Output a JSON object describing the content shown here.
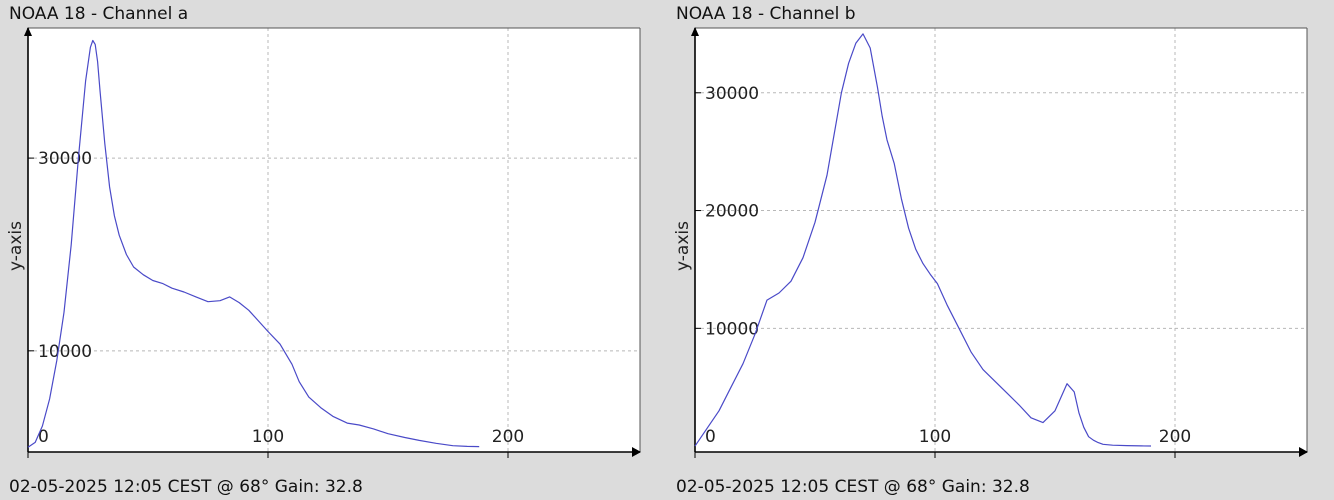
{
  "chart_data": [
    {
      "type": "line",
      "title": "NOAA 18 - Channel a",
      "footer": "02-05-2025 12:05 CEST @ 68° Gain: 32.8",
      "xlabel": "",
      "ylabel": "y-axis",
      "xlim": [
        0,
        255
      ],
      "ylim": [
        -500,
        43500
      ],
      "xticks": [
        0,
        100,
        200
      ],
      "yticks": [
        0,
        10000,
        30000
      ],
      "grid": true,
      "line_color": "#4a4ac8",
      "series": [
        {
          "x": [
            0,
            3,
            6,
            9,
            12,
            15,
            18,
            21,
            24,
            26,
            27,
            28,
            29,
            30,
            32,
            34,
            36,
            38,
            41,
            44,
            48,
            52,
            56,
            60,
            65,
            70,
            75,
            80,
            84,
            88,
            92,
            96,
            100,
            105,
            110,
            113,
            117,
            122,
            127,
            133,
            138,
            144,
            150,
            157,
            163,
            170,
            177,
            183,
            188
          ],
          "y": [
            0,
            500,
            2200,
            5000,
            9000,
            14000,
            21000,
            30000,
            38000,
            41500,
            42200,
            41800,
            40000,
            37000,
            31500,
            27000,
            24000,
            22000,
            20000,
            18700,
            17900,
            17300,
            17000,
            16500,
            16100,
            15600,
            15100,
            15200,
            15600,
            15000,
            14200,
            13100,
            12000,
            10700,
            8600,
            6800,
            5200,
            4100,
            3200,
            2500,
            2300,
            1900,
            1400,
            1000,
            700,
            400,
            150,
            80,
            60
          ]
        }
      ]
    },
    {
      "type": "line",
      "title": "NOAA 18 - Channel b",
      "footer": "02-05-2025 12:05 CEST @ 68° Gain: 32.8",
      "xlabel": "",
      "ylabel": "y-axis",
      "xlim": [
        0,
        255
      ],
      "ylim": [
        -500,
        35500
      ],
      "xticks": [
        0,
        100,
        200
      ],
      "yticks": [
        0,
        10000,
        20000,
        30000
      ],
      "grid": true,
      "line_color": "#4a4ac8",
      "series": [
        {
          "x": [
            0,
            5,
            10,
            15,
            20,
            25,
            30,
            35,
            40,
            45,
            50,
            55,
            58,
            61,
            64,
            67,
            70,
            73,
            76,
            78,
            80,
            83,
            86,
            89,
            92,
            95,
            98,
            101,
            105,
            110,
            115,
            120,
            125,
            130,
            135,
            140,
            145,
            150,
            155,
            158,
            160,
            162,
            164,
            166,
            168,
            170,
            174,
            180,
            186,
            190
          ],
          "y": [
            0,
            1500,
            3000,
            5000,
            7000,
            9500,
            12400,
            13000,
            14000,
            16000,
            19000,
            23000,
            26500,
            30000,
            32500,
            34200,
            35000,
            33800,
            30500,
            28000,
            26000,
            24000,
            21000,
            18500,
            16700,
            15500,
            14600,
            13800,
            12000,
            10000,
            8000,
            6500,
            5500,
            4500,
            3500,
            2400,
            2000,
            3000,
            5300,
            4600,
            2800,
            1600,
            800,
            500,
            300,
            150,
            80,
            40,
            20,
            10
          ]
        }
      ]
    }
  ]
}
